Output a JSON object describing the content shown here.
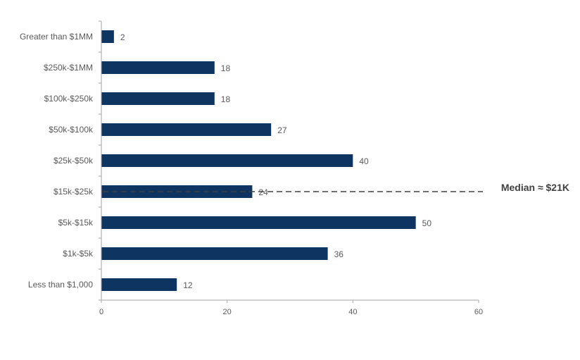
{
  "chart_data": {
    "type": "bar",
    "orientation": "horizontal",
    "categories": [
      "Greater than $1MM",
      "$250k-$1MM",
      "$100k-$250k",
      "$50k-$100k",
      "$25k-$50k",
      "$15k-$25k",
      "$5k-$15k",
      "$1k-$5k",
      "Less than $1,000"
    ],
    "values": [
      2,
      18,
      18,
      27,
      40,
      24,
      50,
      36,
      12
    ],
    "xlim": [
      0,
      60
    ],
    "xticks": [
      0,
      20,
      40,
      60
    ],
    "bar_color": "#0e3461",
    "grid": false,
    "annotation": {
      "text": "Median ≈ $21K",
      "category": "$15k-$25k",
      "style": "dashed",
      "color": "#404040"
    }
  }
}
